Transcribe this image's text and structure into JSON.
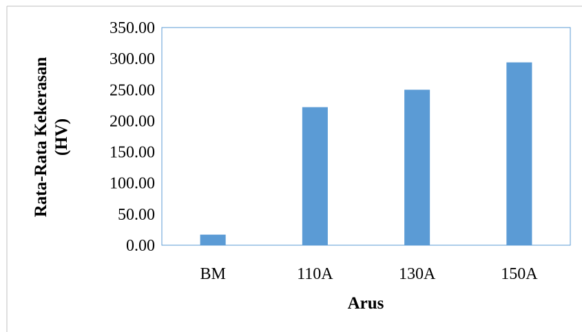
{
  "chart_data": {
    "type": "bar",
    "title": "",
    "xlabel": "Arus",
    "ylabel_lines": [
      "Rata-Rata Kekerasan",
      "(HV)"
    ],
    "categories": [
      "BM",
      "110A",
      "130A",
      "150A"
    ],
    "values": [
      17,
      222,
      250,
      294
    ],
    "ylim": [
      0,
      350
    ],
    "yticks": [
      "0.00",
      "50.00",
      "100.00",
      "150.00",
      "200.00",
      "250.00",
      "300.00",
      "350.00"
    ],
    "grid": false,
    "legend": "none",
    "bar_color": "#5b9bd5",
    "frame_color": "#5b9bd5"
  }
}
